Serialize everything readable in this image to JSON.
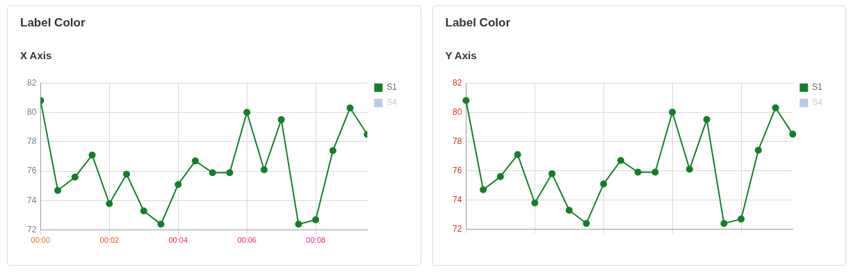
{
  "chart_data": [
    {
      "type": "line",
      "title": "Label Color",
      "subtitle": "X Axis",
      "x": [
        0,
        0.5,
        1,
        1.5,
        2,
        2.5,
        3,
        3.5,
        4,
        4.5,
        5,
        5.5,
        6,
        6.5,
        7,
        7.5,
        8,
        8.5,
        9,
        9.5
      ],
      "series": [
        {
          "name": "S1",
          "color": "#137f2a",
          "values": [
            80.8,
            74.7,
            75.6,
            77.1,
            73.8,
            75.8,
            73.3,
            72.4,
            75.1,
            76.7,
            75.9,
            75.9,
            80.0,
            76.1,
            79.5,
            72.4,
            72.7,
            77.4,
            80.3,
            78.5
          ]
        },
        {
          "name": "S4",
          "color": "#b8cce4",
          "values": [
            null,
            null,
            null,
            null,
            null,
            null,
            null,
            null,
            null,
            null,
            null,
            null,
            null,
            null,
            null,
            null,
            null,
            null,
            null,
            null
          ]
        }
      ],
      "xlim": [
        0,
        9.5
      ],
      "xticks": [
        {
          "value": 0,
          "label": "00:00"
        },
        {
          "value": 2,
          "label": "00:02"
        },
        {
          "value": 4,
          "label": "00:04"
        },
        {
          "value": 6,
          "label": "00:06"
        },
        {
          "value": 8,
          "label": "00:08"
        }
      ],
      "ylim": [
        72,
        82
      ],
      "yticks": [
        72,
        74,
        76,
        78,
        80,
        82
      ],
      "grid": true,
      "legend": "top right",
      "marker": "circle",
      "line_style": "solid"
    },
    {
      "type": "line",
      "title": "Label Color",
      "subtitle": "Y Axis",
      "categories": [
        null,
        null,
        null,
        null,
        null,
        null,
        null,
        null,
        null,
        null,
        null,
        null,
        null,
        null,
        null,
        null,
        null,
        null,
        null,
        null
      ],
      "series": [
        {
          "name": "S1",
          "color": "#137f2a",
          "values": [
            80.8,
            74.7,
            75.6,
            77.1,
            73.8,
            75.8,
            73.3,
            72.4,
            75.1,
            76.7,
            75.9,
            75.9,
            80.0,
            76.1,
            79.5,
            72.4,
            72.7,
            77.4,
            80.3,
            78.5
          ]
        },
        {
          "name": "S4",
          "color": "#b8cce4",
          "values": [
            null,
            null,
            null,
            null,
            null,
            null,
            null,
            null,
            null,
            null,
            null,
            null,
            null,
            null,
            null,
            null,
            null,
            null,
            null,
            null
          ]
        }
      ],
      "ylim": [
        72,
        82
      ],
      "yticks": [
        72,
        74,
        76,
        78,
        80,
        82
      ],
      "grid": true,
      "legend": "top right",
      "marker": "circle",
      "line_style": "solid"
    }
  ]
}
